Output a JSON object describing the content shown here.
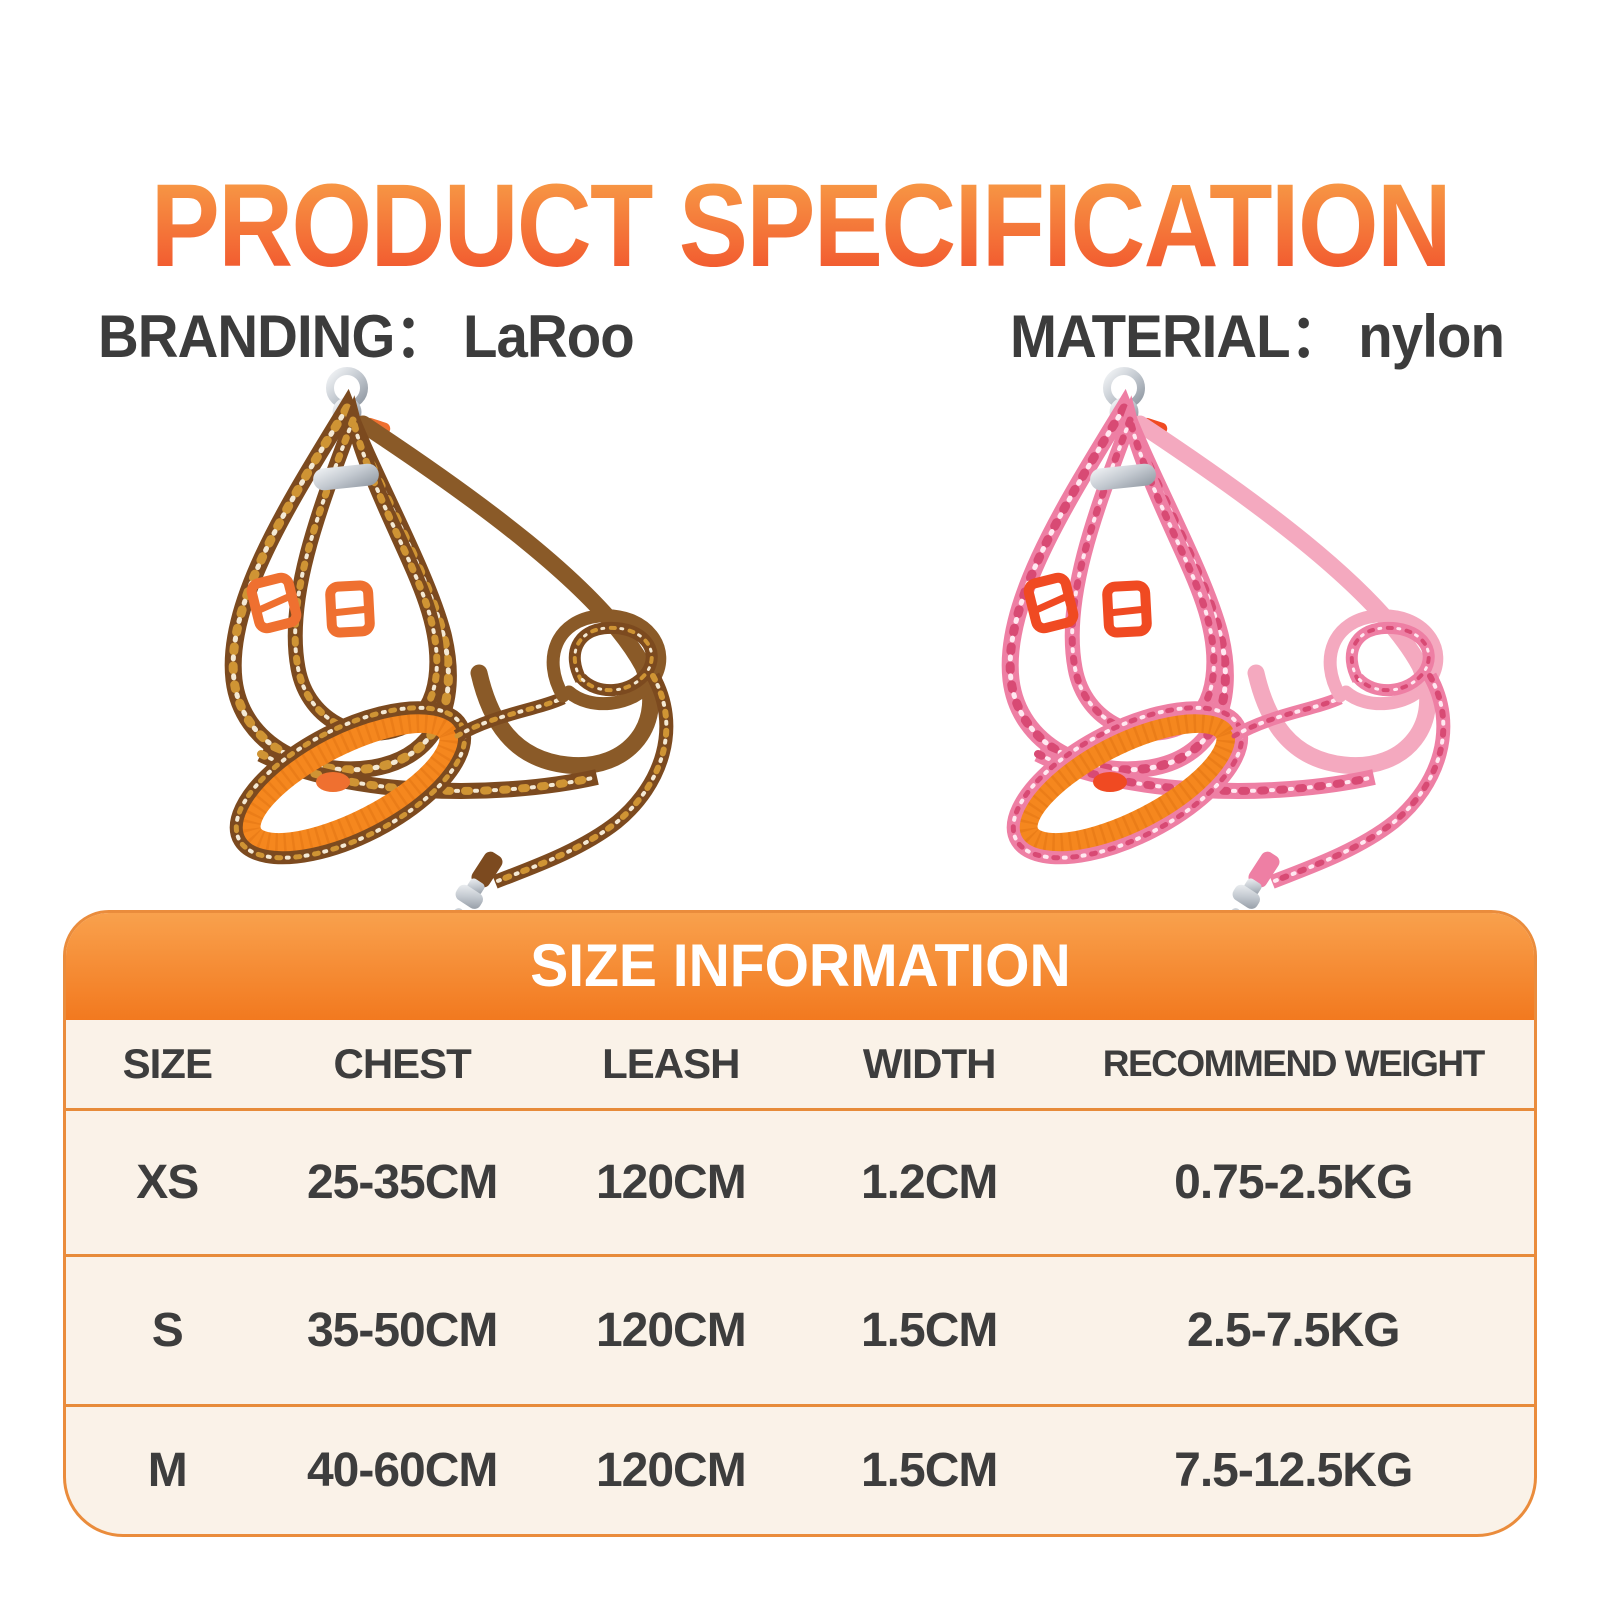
{
  "page": {
    "background": "#FFFFFF"
  },
  "title": {
    "text": "PRODUCT SPECIFICATION",
    "gradient_top": "#F8A148",
    "gradient_bottom": "#F1502C"
  },
  "spec_text_color": "#3C3C3C",
  "specs": [
    {
      "label": "BRANDING：",
      "value": "LaRoo"
    },
    {
      "label": "MATERIAL：",
      "value": "nylon"
    }
  ],
  "products": [
    {
      "variant": "brown",
      "colors": {
        "strap": "#7C4A1F",
        "pattern_dot": "#CF9434",
        "pattern_accent": "#F4E9D4",
        "plain_strap": "#8A5A28",
        "mesh": "#F5871E",
        "mesh_shade": "#D96F10",
        "buckle": "#EF7030",
        "metal_light": "#F2F4F6",
        "metal_mid": "#C3C9D0",
        "metal_dark": "#8F97A1"
      }
    },
    {
      "variant": "pink",
      "colors": {
        "strap": "#EE7FA4",
        "pattern_dot": "#D84A74",
        "pattern_accent": "#FFE9F1",
        "plain_strap": "#F4A9BF",
        "mesh": "#F5871E",
        "mesh_shade": "#D96F10",
        "buckle": "#F04A22",
        "metal_light": "#F2F4F6",
        "metal_mid": "#C3C9D0",
        "metal_dark": "#8F97A1"
      }
    }
  ],
  "size_table": {
    "banner": {
      "text": "SIZE INFORMATION",
      "bg_top": "#F9A24E",
      "bg_bottom": "#F2791F",
      "text_color": "#FFFFFF"
    },
    "panel_bg": "#FAF2E8",
    "border_color": "#EA8C3C",
    "divider_color": "#E78B3A",
    "text_color": "#3D3D3D",
    "header": [
      "SIZE",
      "CHEST",
      "LEASH",
      "WIDTH",
      "RECOMMEND WEIGHT"
    ],
    "rows": [
      [
        "XS",
        "25-35CM",
        "120CM",
        "1.2CM",
        "0.75-2.5KG"
      ],
      [
        "S",
        "35-50CM",
        "120CM",
        "1.5CM",
        "2.5-7.5KG"
      ],
      [
        "M",
        "40-60CM",
        "120CM",
        "1.5CM",
        "7.5-12.5KG"
      ]
    ]
  }
}
